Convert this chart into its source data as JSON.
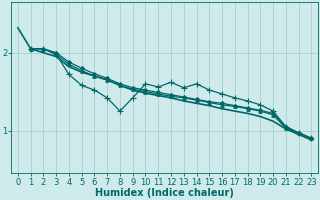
{
  "bg_color": "#ceeaea",
  "line_color": "#006868",
  "grid_color": "#aacece",
  "xlabel": "Humidex (Indice chaleur)",
  "xlabel_fontsize": 7,
  "tick_fontsize": 6,
  "yticks": [
    1,
    2
  ],
  "xlim": [
    -0.5,
    23.5
  ],
  "ylim": [
    0.45,
    2.65
  ],
  "lines": [
    {
      "x": [
        0,
        1,
        2,
        3,
        4,
        5,
        6,
        7,
        8,
        9,
        10,
        11,
        12,
        13,
        14,
        15,
        16,
        17,
        18,
        19,
        20,
        21,
        22,
        23
      ],
      "y": [
        2.32,
        2.05,
        2.0,
        1.95,
        1.82,
        1.75,
        1.7,
        1.65,
        1.58,
        1.52,
        1.48,
        1.45,
        1.42,
        1.38,
        1.35,
        1.32,
        1.28,
        1.25,
        1.22,
        1.18,
        1.12,
        1.02,
        0.95,
        0.88
      ],
      "marker": null,
      "linewidth": 1.2
    },
    {
      "x": [
        1,
        2,
        3,
        4,
        5,
        6,
        7,
        8,
        9,
        10,
        11,
        12,
        13,
        14,
        15,
        16,
        17,
        18,
        19,
        20,
        21,
        22,
        23
      ],
      "y": [
        2.05,
        2.05,
        2.0,
        1.88,
        1.8,
        1.73,
        1.67,
        1.6,
        1.55,
        1.52,
        1.49,
        1.46,
        1.43,
        1.4,
        1.37,
        1.35,
        1.32,
        1.29,
        1.26,
        1.22,
        1.05,
        0.97,
        0.9
      ],
      "marker": "D",
      "markersize": 2.0,
      "linewidth": 0.9
    },
    {
      "x": [
        1,
        2,
        3,
        4,
        5,
        6,
        7,
        8,
        9,
        10,
        11,
        12,
        13,
        14,
        15,
        16,
        17,
        18,
        19,
        20,
        21,
        22,
        23
      ],
      "y": [
        2.05,
        2.05,
        1.98,
        1.72,
        1.58,
        1.52,
        1.42,
        1.25,
        1.42,
        1.6,
        1.56,
        1.62,
        1.55,
        1.6,
        1.52,
        1.47,
        1.42,
        1.38,
        1.33,
        1.25,
        1.05,
        0.97,
        0.9
      ],
      "marker": "+",
      "markersize": 4.5,
      "linewidth": 0.9
    },
    {
      "x": [
        1,
        2,
        3,
        4,
        5,
        6,
        7,
        8,
        9,
        10,
        11,
        12,
        13,
        14,
        15,
        16,
        17,
        18,
        19,
        20,
        21,
        22,
        23
      ],
      "y": [
        2.05,
        2.05,
        1.98,
        1.85,
        1.77,
        1.7,
        1.65,
        1.58,
        1.53,
        1.5,
        1.47,
        1.44,
        1.42,
        1.39,
        1.36,
        1.33,
        1.31,
        1.28,
        1.25,
        1.2,
        1.03,
        0.97,
        0.9
      ],
      "marker": "^",
      "markersize": 2.5,
      "linewidth": 0.9
    }
  ]
}
